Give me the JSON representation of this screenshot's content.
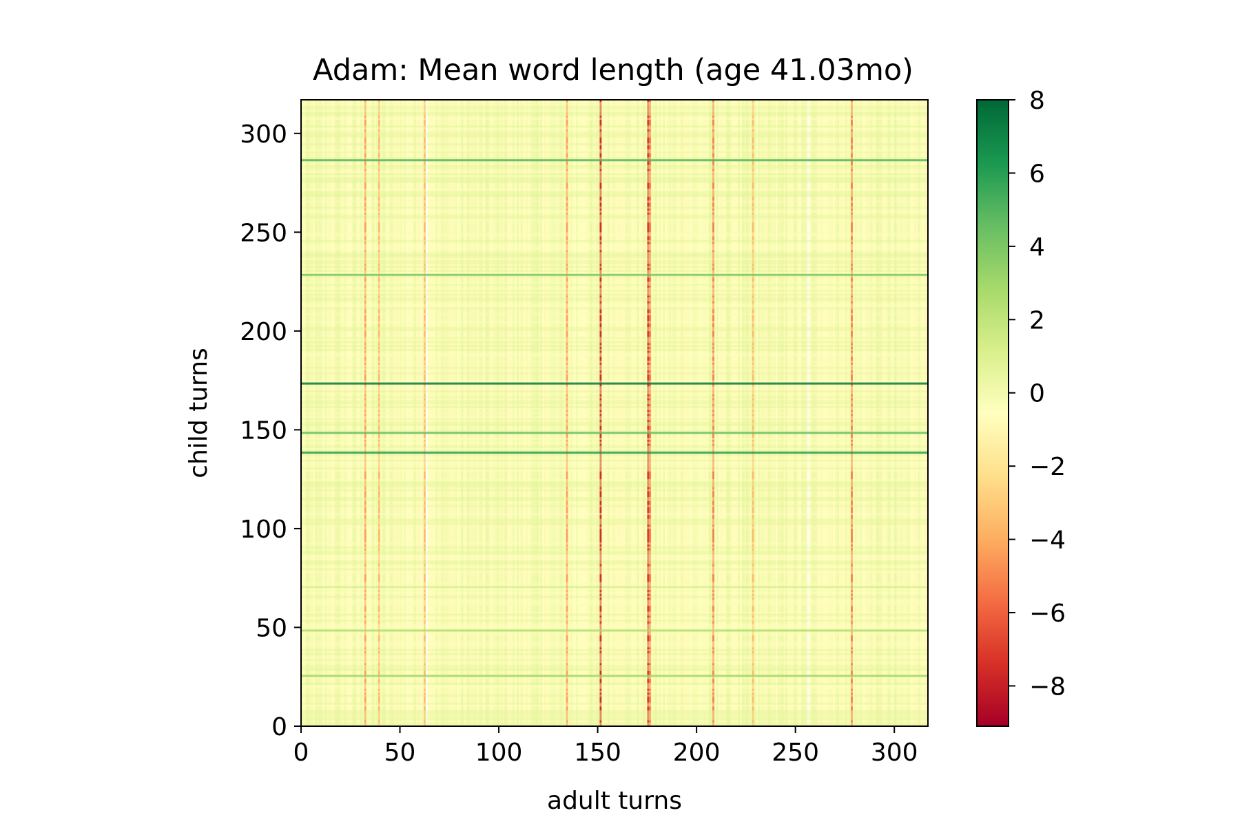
{
  "chart_data": {
    "type": "heatmap",
    "title": "Adam: Mean word length (age 41.03mo)",
    "xlabel": "adult turns",
    "ylabel": "child turns",
    "xlim": [
      0,
      317
    ],
    "ylim": [
      0,
      317
    ],
    "x_ticks": [
      "0",
      "50",
      "100",
      "150",
      "200",
      "250",
      "300"
    ],
    "y_ticks": [
      "0",
      "50",
      "100",
      "150",
      "200",
      "250",
      "300"
    ],
    "x_tick_values": [
      0,
      50,
      100,
      150,
      200,
      250,
      300
    ],
    "y_tick_values": [
      0,
      50,
      100,
      150,
      200,
      250,
      300
    ],
    "colormap": "RdYlGn",
    "colorbar": {
      "min": -9.1,
      "max": 8.0,
      "tick_values": [
        -8,
        -6,
        -4,
        -2,
        0,
        2,
        4,
        6,
        8
      ],
      "tick_labels": [
        "−8",
        "−6",
        "−4",
        "−2",
        "0",
        "2",
        "4",
        "6",
        "8"
      ]
    },
    "matrix_description": "value(adult_i, child_j) = child_mean_word_length_j − adult_mean_word_length_i (relative units)",
    "notable_adult_columns": [
      {
        "x": 32,
        "value": -5
      },
      {
        "x": 39,
        "value": -4
      },
      {
        "x": 62,
        "value": -4
      },
      {
        "x": 63,
        "value": 0
      },
      {
        "x": 134,
        "value": -5
      },
      {
        "x": 151,
        "value": -9
      },
      {
        "x": 175,
        "value": -8.5
      },
      {
        "x": 176,
        "value": -6
      },
      {
        "x": 208,
        "value": -6
      },
      {
        "x": 228,
        "value": -4
      },
      {
        "x": 256,
        "value": 0
      },
      {
        "x": 278,
        "value": -6
      }
    ],
    "notable_child_rows": [
      {
        "y": 173,
        "value": 7.5
      },
      {
        "y": 138,
        "value": 6
      },
      {
        "y": 148,
        "value": 4.5
      },
      {
        "y": 228,
        "value": 4
      },
      {
        "y": 286,
        "value": 5
      },
      {
        "y": 25,
        "value": 3
      },
      {
        "y": 48,
        "value": 2.5
      },
      {
        "y": 70,
        "value": 2
      }
    ]
  }
}
